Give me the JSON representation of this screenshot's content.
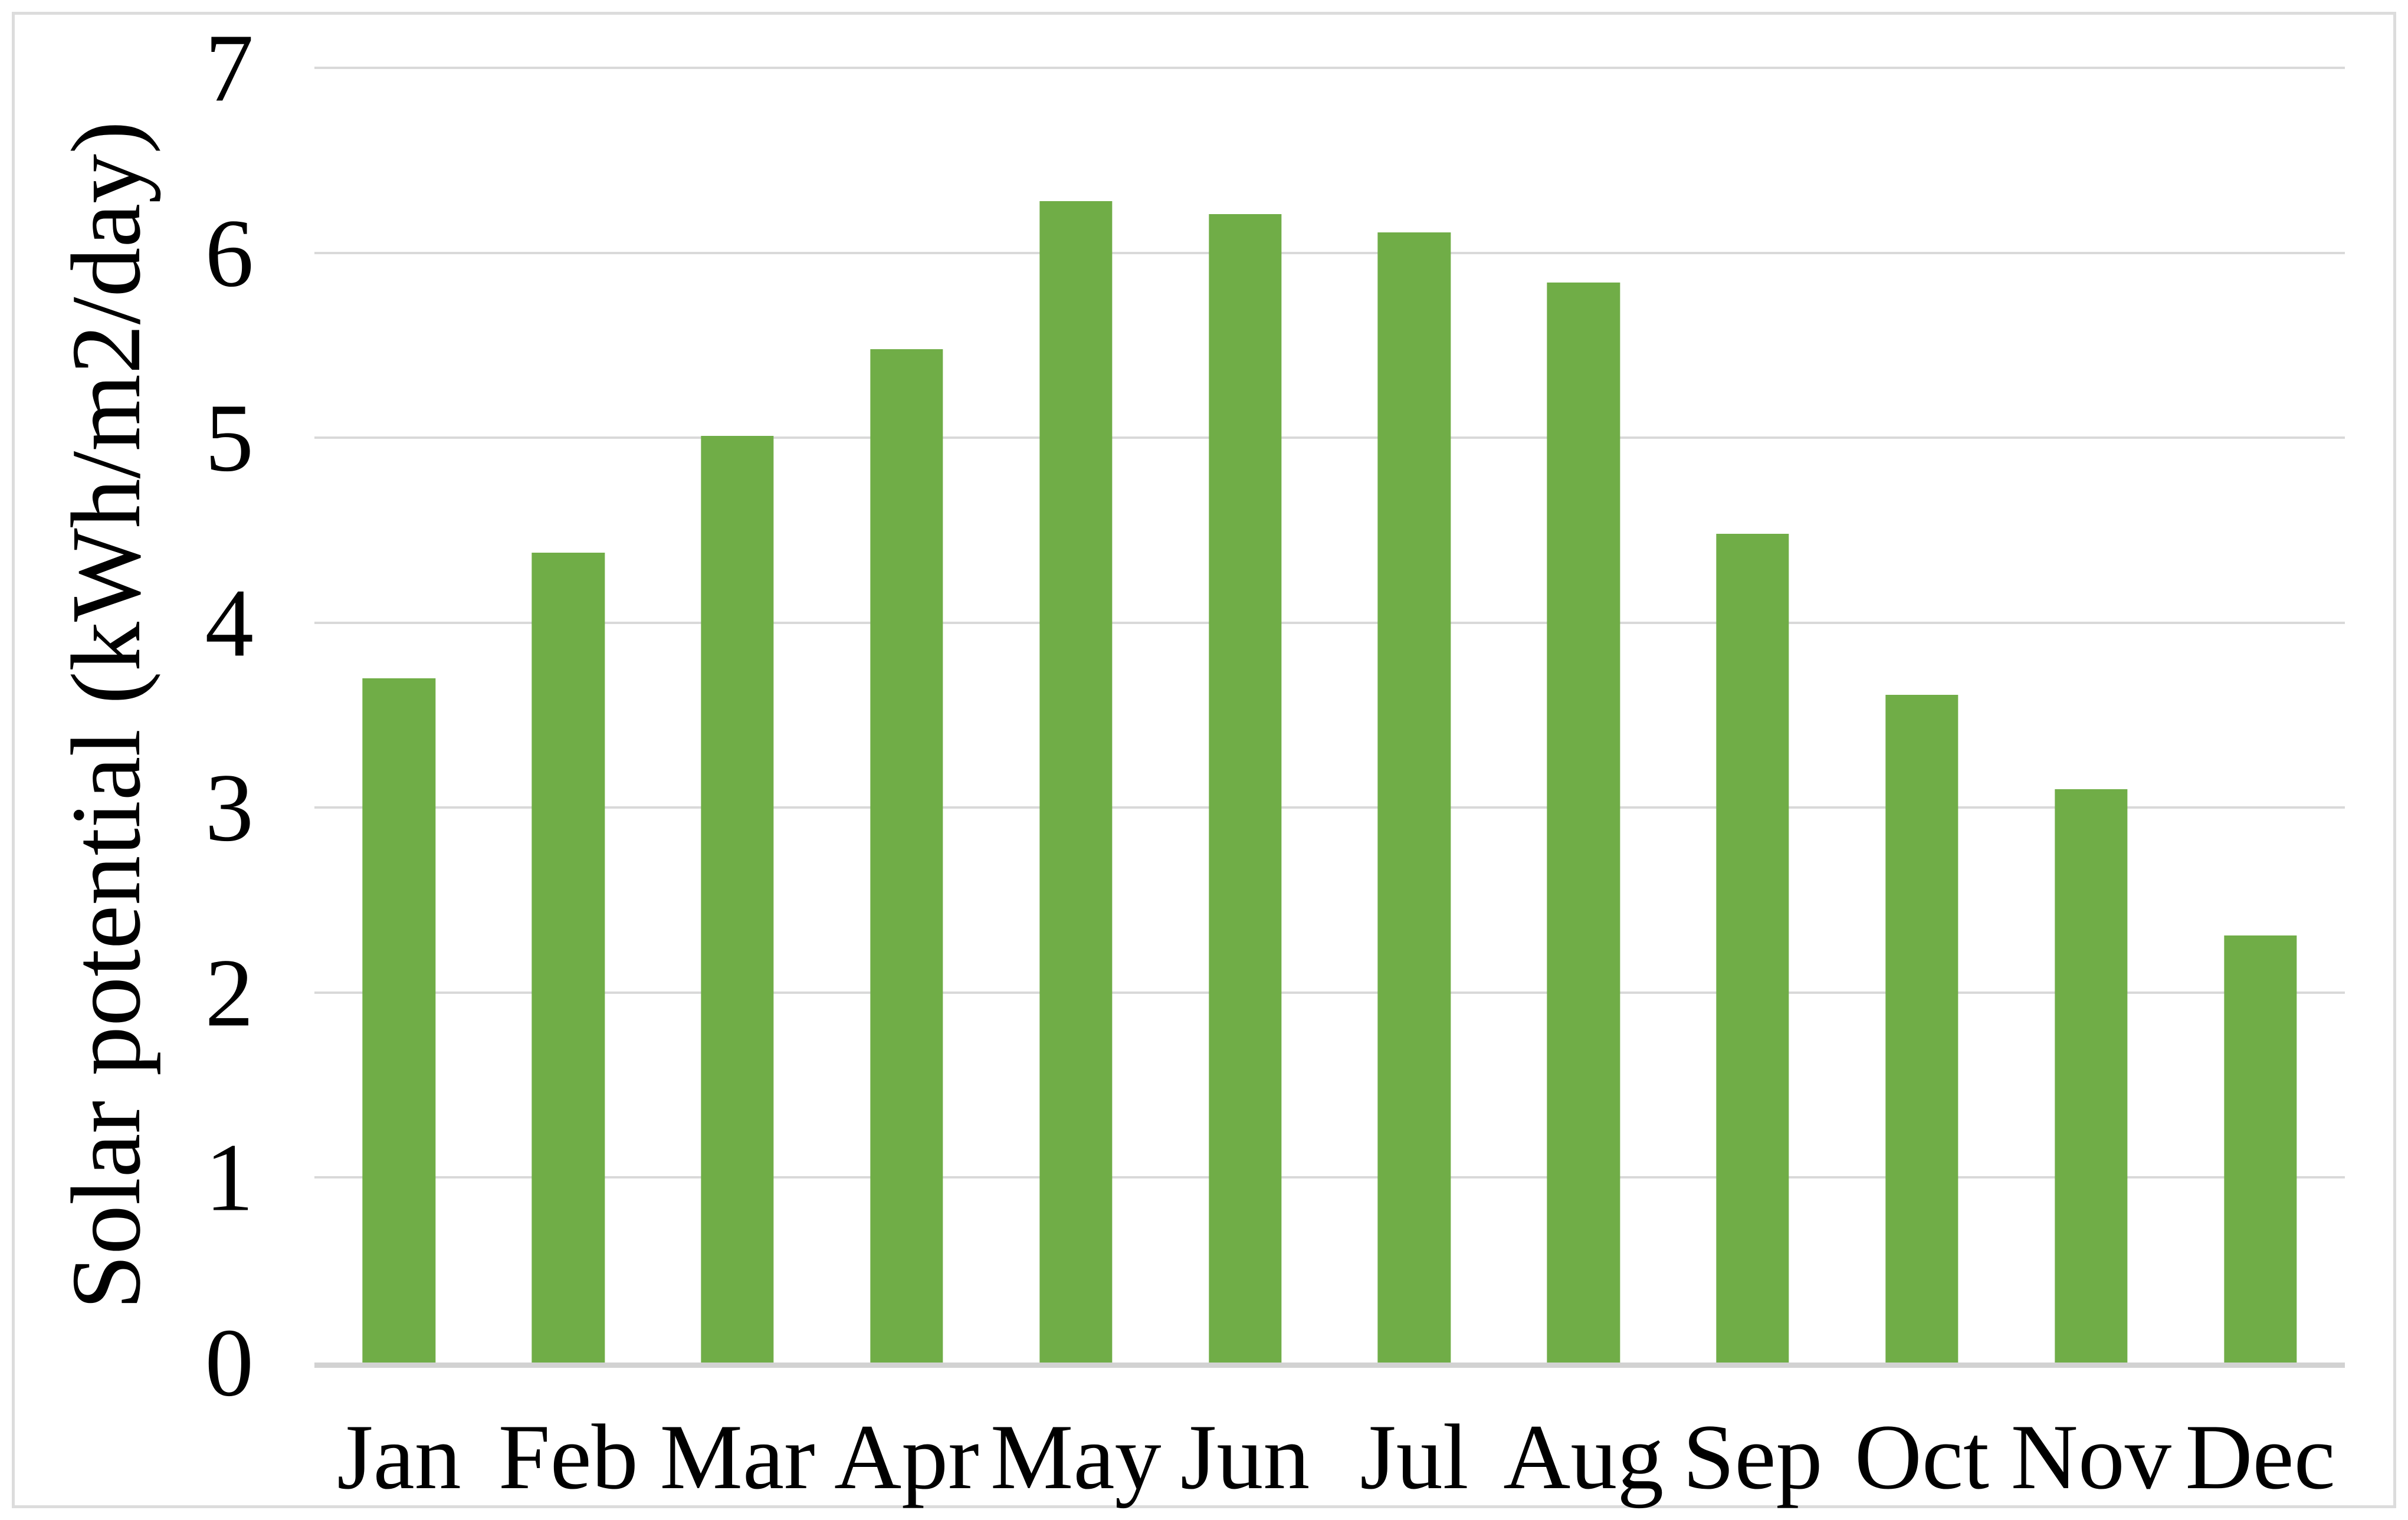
{
  "chart_data": {
    "type": "bar",
    "categories": [
      "Jan",
      "Feb",
      "Mar",
      "Apr",
      "May",
      "Jun",
      "Jul",
      "Aug",
      "Sep",
      "Oct",
      "Nov",
      "Dec"
    ],
    "values": [
      3.7,
      4.38,
      5.01,
      5.48,
      6.28,
      6.21,
      6.11,
      5.84,
      4.48,
      3.61,
      3.1,
      2.31
    ],
    "title": "",
    "xlabel": "",
    "ylabel": "Solar potential (kWh/m2/day)",
    "ylim": [
      0,
      7
    ],
    "yticks": [
      0,
      1,
      2,
      3,
      4,
      5,
      6,
      7
    ],
    "grid": true,
    "legend": false,
    "bar_color": "#70AD47",
    "gridline_color": "#D9D9D9",
    "axis_line_color": "#D2D2D2",
    "border_color": "#DCDCDC",
    "text_color": "#000000",
    "background_color": "#FFFFFF"
  }
}
